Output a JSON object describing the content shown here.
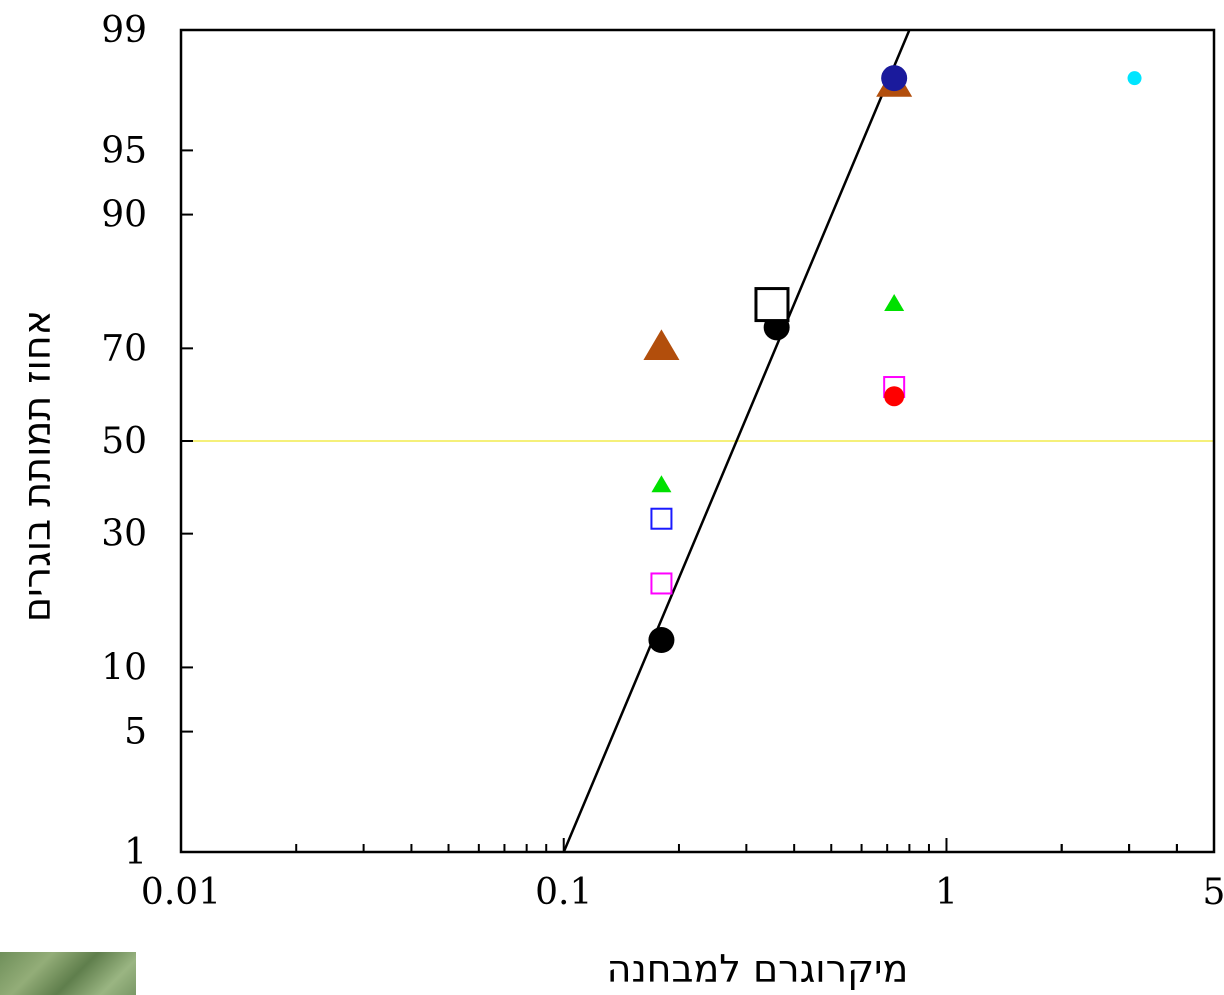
{
  "chart_data": {
    "type": "scatter",
    "xlabel": "מיקרוגרם למבחנה",
    "ylabel": "אחוז תמותת בוגרים",
    "x_scale": "log",
    "y_scale": "probit",
    "xlim": [
      0.01,
      5
    ],
    "ylim": [
      1,
      99
    ],
    "x_ticks": [
      {
        "value": 0.01,
        "label": "0.01"
      },
      {
        "value": 0.1,
        "label": "0.1"
      },
      {
        "value": 1,
        "label": "1"
      },
      {
        "value": 5,
        "label": "5"
      }
    ],
    "y_ticks": [
      {
        "value": 1,
        "label": "1"
      },
      {
        "value": 5,
        "label": "5"
      },
      {
        "value": 10,
        "label": "10"
      },
      {
        "value": 30,
        "label": "30"
      },
      {
        "value": 50,
        "label": "50"
      },
      {
        "value": 70,
        "label": "70"
      },
      {
        "value": 90,
        "label": "90"
      },
      {
        "value": 95,
        "label": "95"
      },
      {
        "value": 99,
        "label": "99"
      }
    ],
    "reference_line": {
      "y": 50,
      "color": "#f5f07a"
    },
    "fit_line": {
      "from": [
        0.1,
        1
      ],
      "to": [
        0.8,
        99
      ],
      "color": "#000000"
    },
    "series": [
      {
        "marker": "circle-filled",
        "color": "#000000",
        "size": 13,
        "points": [
          [
            0.18,
            13
          ],
          [
            0.36,
            74
          ]
        ]
      },
      {
        "marker": "square-open",
        "color": "#000000",
        "size": 16,
        "points": [
          [
            0.35,
            78
          ]
        ]
      },
      {
        "marker": "triangle-filled",
        "color": "#b24e0c",
        "size": 18,
        "points": [
          [
            0.18,
            70
          ],
          [
            0.73,
            97.8
          ]
        ]
      },
      {
        "marker": "triangle-filled",
        "color": "#00e000",
        "size": 10,
        "points": [
          [
            0.18,
            40
          ],
          [
            0.73,
            78
          ]
        ]
      },
      {
        "marker": "square-open",
        "color": "#1a1aff",
        "size": 10,
        "points": [
          [
            0.18,
            33
          ]
        ]
      },
      {
        "marker": "square-open",
        "color": "#ff00ff",
        "size": 10,
        "points": [
          [
            0.18,
            21
          ],
          [
            0.73,
            62
          ]
        ]
      },
      {
        "marker": "circle-filled",
        "color": "#ff0000",
        "size": 10,
        "points": [
          [
            0.73,
            60
          ]
        ]
      },
      {
        "marker": "circle-filled",
        "color": "#1a1a9c",
        "size": 13,
        "points": [
          [
            0.73,
            98
          ]
        ]
      },
      {
        "marker": "circle-filled",
        "color": "#00e5ff",
        "size": 7,
        "points": [
          [
            3.1,
            98
          ]
        ]
      }
    ]
  }
}
